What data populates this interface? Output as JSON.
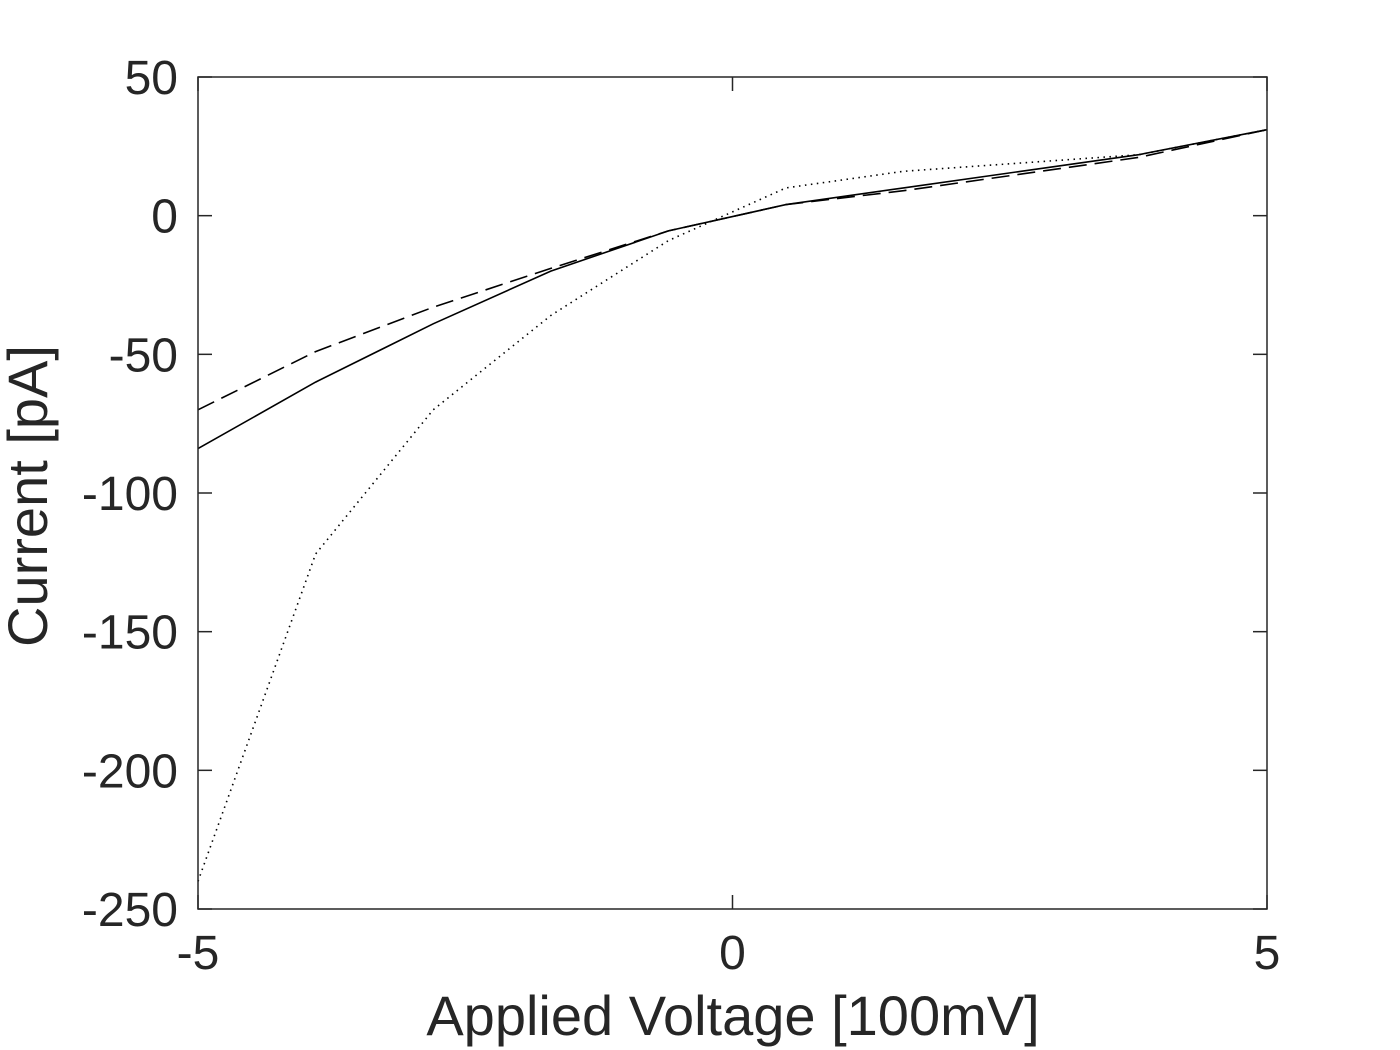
{
  "chart_data": {
    "type": "line",
    "title": "",
    "xlabel": "Applied Voltage [100mV]",
    "ylabel": "Current [pA]",
    "xlim": [
      -5,
      5
    ],
    "ylim": [
      -250,
      50
    ],
    "xticks": [
      -5,
      0,
      5
    ],
    "yticks": [
      50,
      0,
      -50,
      -100,
      -150,
      -200,
      -250
    ],
    "xtick_labels": [
      "-5",
      "0",
      "5"
    ],
    "ytick_labels": [
      "50",
      "0",
      "-50",
      "-100",
      "-150",
      "-200",
      "-250"
    ],
    "grid": false,
    "legend": "none",
    "series": [
      {
        "style": "solid",
        "color": "#000000",
        "x": [
          -5,
          -3.9,
          -2.8,
          -1.7,
          -0.6,
          0.5,
          1.6,
          2.7,
          3.8,
          5
        ],
        "y": [
          -84,
          -60,
          -39,
          -20,
          -5.5,
          4,
          10,
          16,
          22,
          31
        ]
      },
      {
        "style": "dashed",
        "color": "#000000",
        "x": [
          -5,
          -3.9,
          -2.8,
          -1.7,
          -0.6,
          0.5,
          1.6,
          2.7,
          3.8,
          5
        ],
        "y": [
          -70,
          -49,
          -33,
          -19,
          -5.5,
          4,
          9,
          15,
          21,
          31
        ]
      },
      {
        "style": "dotted",
        "color": "#000000",
        "x": [
          -5,
          -3.9,
          -2.8,
          -1.7,
          -0.6,
          0.5,
          1.6,
          2.7,
          3.8,
          5
        ],
        "y": [
          -240,
          -122,
          -70,
          -36,
          -9,
          10,
          16,
          19,
          22,
          31
        ]
      }
    ]
  }
}
